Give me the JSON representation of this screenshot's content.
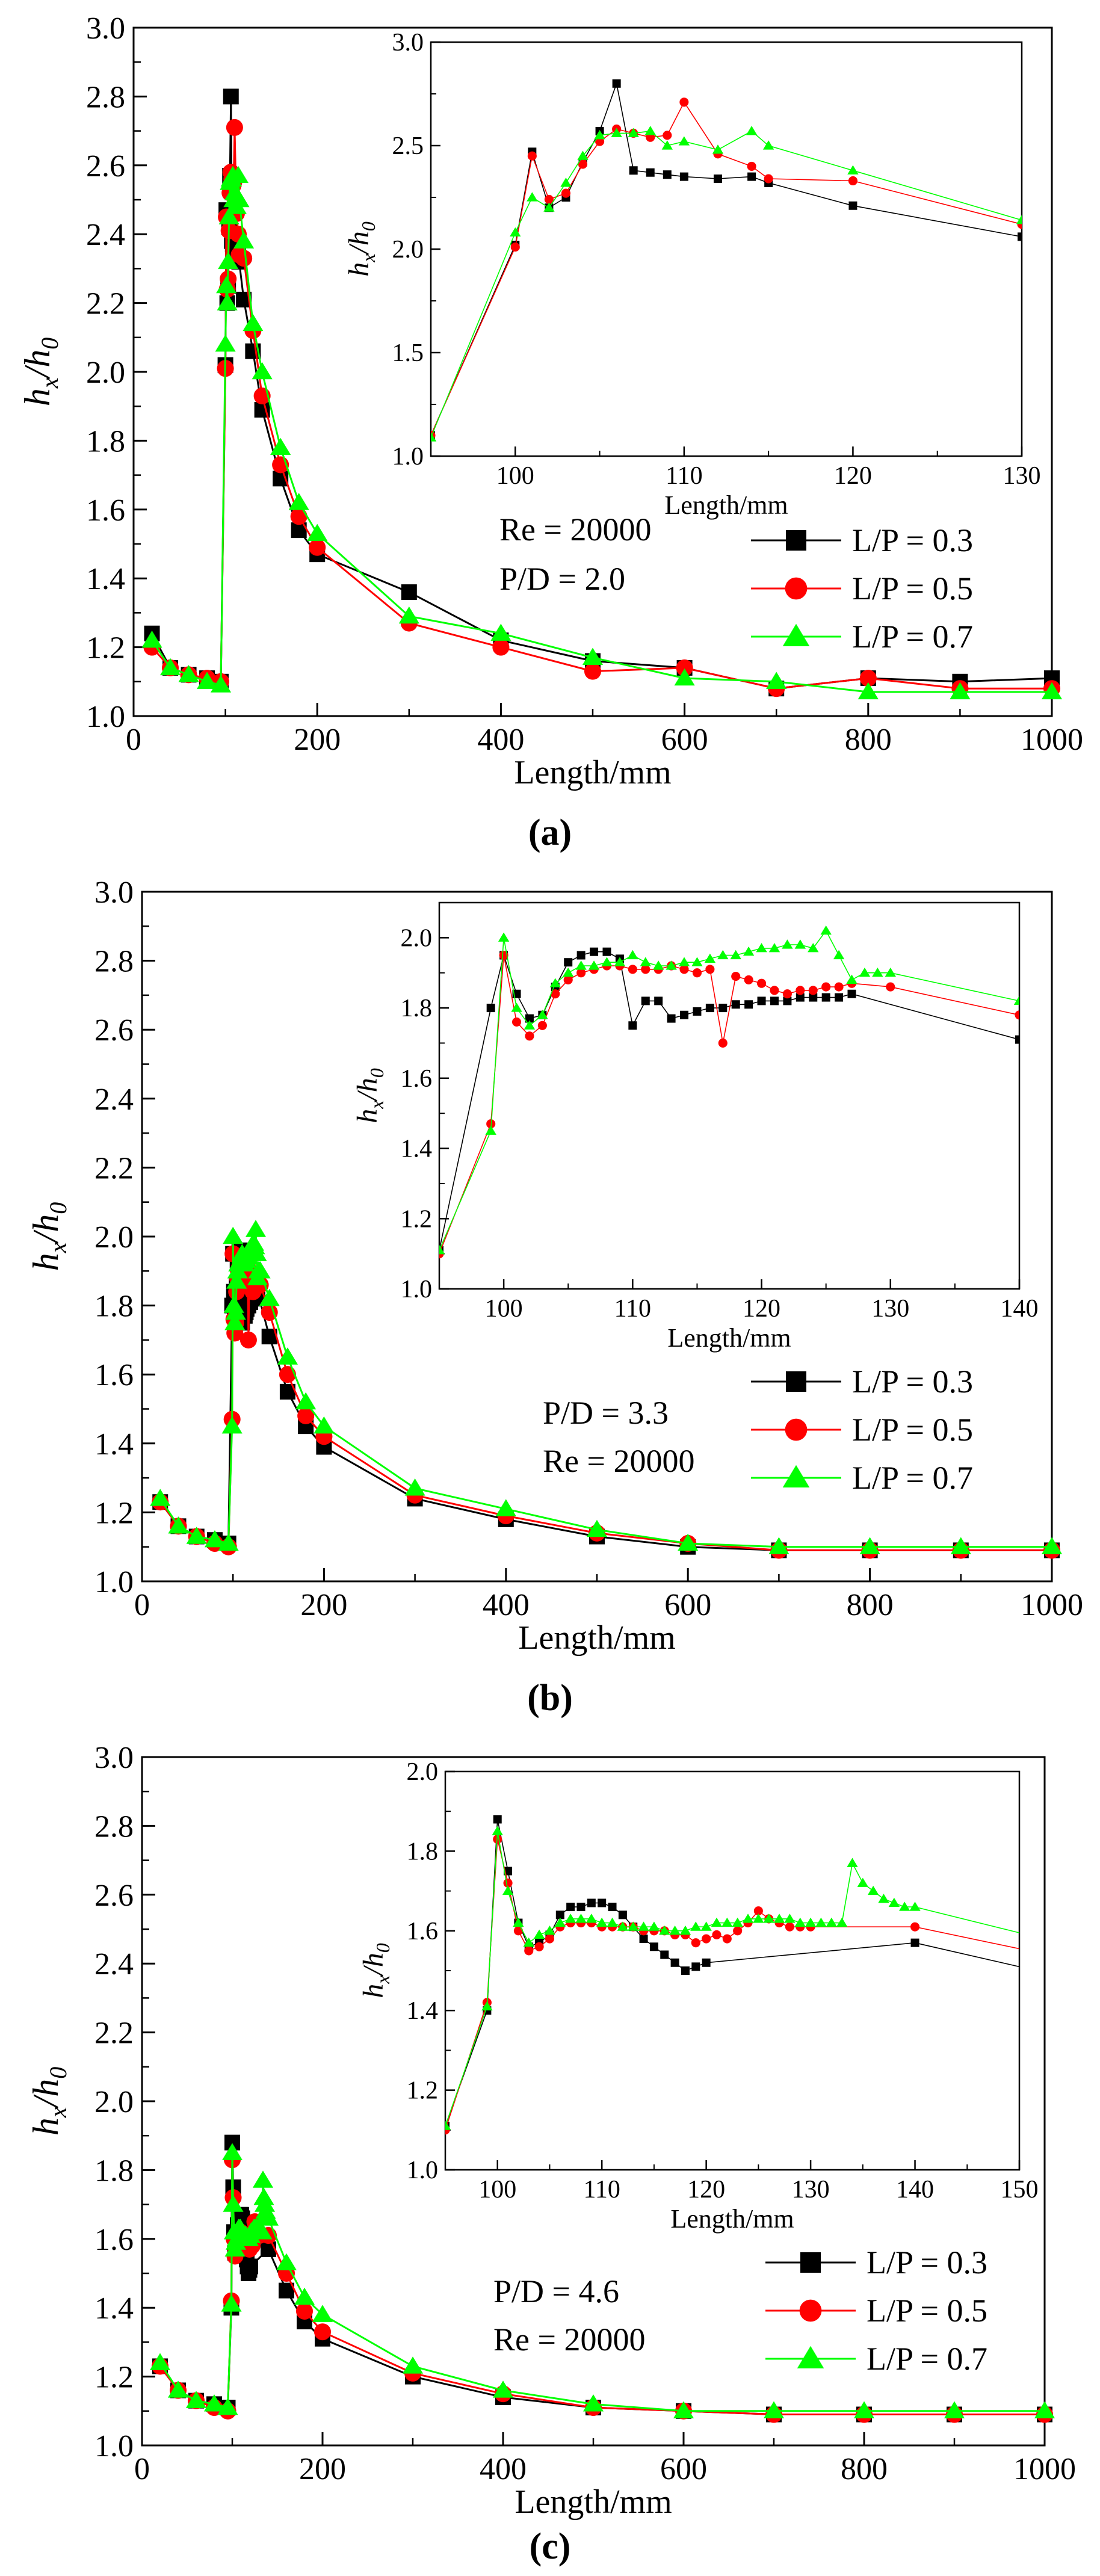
{
  "colors": {
    "series": [
      "#000000",
      "#ff0000",
      "#00ff00"
    ],
    "axis": "#000000",
    "background": "#ffffff"
  },
  "chart_data": [
    {
      "panel_label": "(a)",
      "type": "line",
      "xlabel": "Length/mm",
      "ylabel_main": "h",
      "ylabel_sub1": "x",
      "ylabel_sep": "/h",
      "ylabel_sub2": "0",
      "xlim": [
        0,
        1000
      ],
      "ylim": [
        1.0,
        3.0
      ],
      "xticks": [
        0,
        200,
        400,
        600,
        800,
        1000
      ],
      "yticks": [
        1.0,
        1.2,
        1.4,
        1.6,
        1.8,
        2.0,
        2.2,
        2.4,
        2.6,
        2.8,
        3.0
      ],
      "annotations": [
        "Re = 20000",
        "P/D = 2.0"
      ],
      "legend_position": "bottom-right",
      "series": [
        {
          "name": "L/P = 0.3",
          "marker": "square",
          "x": [
            20,
            40,
            60,
            80,
            95,
            100,
            101,
            102,
            103,
            104,
            105,
            106,
            107,
            108,
            109,
            110,
            112,
            114,
            115,
            120,
            130,
            140,
            160,
            180,
            200,
            300,
            400,
            500,
            600,
            700,
            800,
            900,
            1000
          ],
          "y": [
            1.24,
            1.14,
            1.12,
            1.11,
            1.1,
            2.02,
            2.47,
            2.2,
            2.25,
            2.42,
            2.57,
            2.8,
            2.38,
            2.37,
            2.36,
            2.35,
            2.34,
            2.35,
            2.32,
            2.21,
            2.06,
            1.89,
            1.69,
            1.54,
            1.47,
            1.36,
            1.22,
            1.16,
            1.14,
            1.08,
            1.11,
            1.1,
            1.11
          ]
        },
        {
          "name": "L/P = 0.5",
          "marker": "circle",
          "x": [
            20,
            40,
            60,
            80,
            95,
            100,
            101,
            102,
            103,
            104,
            105,
            106,
            107,
            108,
            109,
            110,
            112,
            114,
            115,
            120,
            130,
            140,
            160,
            180,
            200,
            300,
            400,
            500,
            600,
            700,
            800,
            900,
            1000
          ],
          "y": [
            1.2,
            1.14,
            1.12,
            1.11,
            1.1,
            2.01,
            2.45,
            2.24,
            2.27,
            2.41,
            2.52,
            2.58,
            2.56,
            2.54,
            2.55,
            2.71,
            2.46,
            2.4,
            2.34,
            2.33,
            2.12,
            1.93,
            1.73,
            1.58,
            1.49,
            1.27,
            1.2,
            1.13,
            1.14,
            1.08,
            1.11,
            1.08,
            1.08
          ]
        },
        {
          "name": "L/P = 0.7",
          "marker": "triangle",
          "x": [
            20,
            40,
            60,
            80,
            95,
            100,
            101,
            102,
            103,
            104,
            105,
            106,
            107,
            108,
            109,
            110,
            112,
            114,
            115,
            120,
            130,
            140,
            160,
            180,
            200,
            300,
            400,
            500,
            600,
            700,
            800,
            900,
            1000
          ],
          "y": [
            1.22,
            1.14,
            1.12,
            1.1,
            1.09,
            2.08,
            2.25,
            2.2,
            2.32,
            2.45,
            2.55,
            2.56,
            2.56,
            2.57,
            2.5,
            2.52,
            2.48,
            2.57,
            2.5,
            2.38,
            2.14,
            2.0,
            1.78,
            1.62,
            1.53,
            1.29,
            1.24,
            1.17,
            1.11,
            1.1,
            1.07,
            1.07,
            1.07
          ]
        }
      ],
      "inset": {
        "xlabel": "Length/mm",
        "xlim": [
          95,
          130
        ],
        "ylim": [
          1.0,
          3.0
        ],
        "xticks": [
          100,
          110,
          120,
          130
        ],
        "yticks": [
          1.0,
          1.5,
          2.0,
          2.5,
          3.0
        ],
        "ytick_labels": [
          "1.0",
          "1.5",
          "2.0",
          "2.5",
          "3.0"
        ]
      }
    },
    {
      "panel_label": "(b)",
      "type": "line",
      "xlabel": "Length/mm",
      "ylabel_main": "h",
      "ylabel_sub1": "x",
      "ylabel_sep": "/h",
      "ylabel_sub2": "0",
      "xlim": [
        0,
        1000
      ],
      "ylim": [
        1.0,
        3.0
      ],
      "xticks": [
        0,
        200,
        400,
        600,
        800,
        1000
      ],
      "yticks": [
        1.0,
        1.2,
        1.4,
        1.6,
        1.8,
        2.0,
        2.2,
        2.4,
        2.6,
        2.8,
        3.0
      ],
      "annotations": [
        "P/D = 3.3",
        "Re = 20000"
      ],
      "legend_position": "bottom-right",
      "series": [
        {
          "name": "L/P = 0.3",
          "marker": "square",
          "x": [
            20,
            40,
            60,
            80,
            95,
            99,
            100,
            101,
            102,
            103,
            104,
            105,
            106,
            107,
            108,
            109,
            110,
            111,
            112,
            113,
            114,
            115,
            116,
            117,
            118,
            119,
            120,
            121,
            122,
            123,
            124,
            125,
            126,
            127,
            140,
            160,
            180,
            200,
            300,
            400,
            500,
            600,
            700,
            800,
            900,
            1000
          ],
          "y": [
            1.23,
            1.16,
            1.13,
            1.12,
            1.11,
            1.8,
            1.95,
            1.84,
            1.77,
            1.78,
            1.86,
            1.93,
            1.95,
            1.96,
            1.96,
            1.94,
            1.75,
            1.82,
            1.82,
            1.77,
            1.78,
            1.79,
            1.8,
            1.8,
            1.81,
            1.81,
            1.82,
            1.82,
            1.82,
            1.83,
            1.83,
            1.83,
            1.83,
            1.84,
            1.71,
            1.55,
            1.45,
            1.39,
            1.24,
            1.18,
            1.13,
            1.1,
            1.09,
            1.09,
            1.09,
            1.09
          ]
        },
        {
          "name": "L/P = 0.5",
          "marker": "circle",
          "x": [
            20,
            40,
            60,
            80,
            95,
            99,
            100,
            101,
            102,
            103,
            104,
            105,
            106,
            107,
            108,
            109,
            110,
            111,
            112,
            113,
            114,
            115,
            116,
            117,
            118,
            119,
            120,
            121,
            122,
            123,
            124,
            125,
            126,
            127,
            130,
            140,
            160,
            180,
            200,
            300,
            400,
            500,
            600,
            700,
            800,
            900,
            1000
          ],
          "y": [
            1.23,
            1.16,
            1.13,
            1.11,
            1.1,
            1.47,
            1.95,
            1.76,
            1.72,
            1.75,
            1.84,
            1.88,
            1.9,
            1.91,
            1.92,
            1.92,
            1.91,
            1.91,
            1.91,
            1.92,
            1.91,
            1.9,
            1.91,
            1.7,
            1.89,
            1.88,
            1.87,
            1.85,
            1.84,
            1.85,
            1.85,
            1.86,
            1.86,
            1.87,
            1.86,
            1.78,
            1.6,
            1.48,
            1.42,
            1.25,
            1.19,
            1.14,
            1.11,
            1.09,
            1.09,
            1.09,
            1.09
          ]
        },
        {
          "name": "L/P = 0.7",
          "marker": "triangle",
          "x": [
            20,
            40,
            60,
            80,
            95,
            99,
            100,
            101,
            102,
            103,
            104,
            105,
            106,
            107,
            108,
            109,
            110,
            111,
            112,
            113,
            114,
            115,
            116,
            117,
            118,
            119,
            120,
            121,
            122,
            123,
            124,
            125,
            126,
            127,
            128,
            129,
            130,
            140,
            160,
            180,
            200,
            300,
            400,
            500,
            600,
            700,
            800,
            900,
            1000
          ],
          "y": [
            1.24,
            1.16,
            1.13,
            1.12,
            1.11,
            1.45,
            2.0,
            1.8,
            1.75,
            1.78,
            1.87,
            1.9,
            1.92,
            1.92,
            1.93,
            1.93,
            1.95,
            1.93,
            1.92,
            1.92,
            1.93,
            1.93,
            1.94,
            1.95,
            1.95,
            1.96,
            1.97,
            1.97,
            1.98,
            1.98,
            1.97,
            2.02,
            1.95,
            1.88,
            1.9,
            1.9,
            1.9,
            1.82,
            1.65,
            1.52,
            1.45,
            1.27,
            1.21,
            1.15,
            1.11,
            1.1,
            1.1,
            1.1,
            1.1
          ]
        }
      ],
      "inset": {
        "xlabel": "Length/mm",
        "xlim": [
          95,
          140
        ],
        "ylim": [
          1.0,
          2.1
        ],
        "xticks": [
          100,
          110,
          120,
          130,
          140
        ],
        "yticks": [
          1.0,
          1.2,
          1.4,
          1.6,
          1.8,
          2.0
        ],
        "ytick_labels": [
          "1.0",
          "1.2",
          "1.4",
          "1.6",
          "1.8",
          "2.0"
        ]
      }
    },
    {
      "panel_label": "(c)",
      "type": "line",
      "xlabel": "Length/mm",
      "ylabel_main": "h",
      "ylabel_sub1": "x",
      "ylabel_sep": "/h",
      "ylabel_sub2": "0",
      "xlim": [
        0,
        1000
      ],
      "ylim": [
        1.0,
        3.0
      ],
      "xticks": [
        0,
        200,
        400,
        600,
        800,
        1000
      ],
      "yticks": [
        1.0,
        1.2,
        1.4,
        1.6,
        1.8,
        2.0,
        2.2,
        2.4,
        2.6,
        2.8,
        3.0
      ],
      "annotations": [
        "P/D = 4.6",
        "Re = 20000"
      ],
      "legend_position": "bottom-right",
      "series": [
        {
          "name": "L/P = 0.3",
          "marker": "square",
          "x": [
            20,
            40,
            60,
            80,
            95,
            99,
            100,
            101,
            102,
            103,
            104,
            105,
            106,
            107,
            108,
            109,
            110,
            111,
            112,
            113,
            114,
            115,
            116,
            117,
            118,
            119,
            120,
            140,
            160,
            180,
            200,
            300,
            400,
            500,
            600,
            700,
            800,
            900,
            1000
          ],
          "y": [
            1.23,
            1.16,
            1.13,
            1.12,
            1.11,
            1.4,
            1.88,
            1.75,
            1.62,
            1.56,
            1.57,
            1.59,
            1.64,
            1.66,
            1.66,
            1.67,
            1.67,
            1.66,
            1.64,
            1.61,
            1.58,
            1.56,
            1.54,
            1.52,
            1.5,
            1.51,
            1.52,
            1.57,
            1.45,
            1.36,
            1.31,
            1.2,
            1.14,
            1.11,
            1.1,
            1.09,
            1.09,
            1.09,
            1.09
          ]
        },
        {
          "name": "L/P = 0.5",
          "marker": "circle",
          "x": [
            20,
            40,
            60,
            80,
            95,
            99,
            100,
            101,
            102,
            103,
            104,
            105,
            106,
            107,
            108,
            109,
            110,
            111,
            112,
            113,
            114,
            115,
            116,
            117,
            118,
            119,
            120,
            121,
            122,
            123,
            124,
            125,
            126,
            127,
            128,
            129,
            130,
            140,
            160,
            180,
            200,
            300,
            400,
            500,
            600,
            700,
            800,
            900,
            1000
          ],
          "y": [
            1.23,
            1.16,
            1.13,
            1.11,
            1.1,
            1.42,
            1.83,
            1.72,
            1.6,
            1.55,
            1.56,
            1.58,
            1.61,
            1.62,
            1.62,
            1.62,
            1.61,
            1.61,
            1.61,
            1.61,
            1.6,
            1.6,
            1.6,
            1.59,
            1.59,
            1.57,
            1.58,
            1.59,
            1.58,
            1.6,
            1.62,
            1.65,
            1.63,
            1.62,
            1.61,
            1.61,
            1.61,
            1.61,
            1.5,
            1.39,
            1.33,
            1.21,
            1.15,
            1.11,
            1.1,
            1.09,
            1.09,
            1.09,
            1.09
          ]
        },
        {
          "name": "L/P = 0.7",
          "marker": "triangle",
          "x": [
            20,
            40,
            60,
            80,
            95,
            99,
            100,
            101,
            102,
            103,
            104,
            105,
            106,
            107,
            108,
            109,
            110,
            111,
            112,
            113,
            114,
            115,
            116,
            117,
            118,
            119,
            120,
            121,
            122,
            123,
            124,
            125,
            126,
            127,
            128,
            129,
            130,
            131,
            132,
            133,
            134,
            135,
            136,
            137,
            138,
            139,
            140,
            160,
            180,
            200,
            300,
            400,
            500,
            600,
            700,
            800,
            900,
            1000
          ],
          "y": [
            1.24,
            1.16,
            1.13,
            1.12,
            1.11,
            1.41,
            1.85,
            1.7,
            1.62,
            1.57,
            1.59,
            1.6,
            1.62,
            1.63,
            1.63,
            1.63,
            1.62,
            1.62,
            1.61,
            1.61,
            1.61,
            1.61,
            1.6,
            1.6,
            1.6,
            1.61,
            1.61,
            1.62,
            1.62,
            1.62,
            1.63,
            1.63,
            1.63,
            1.63,
            1.63,
            1.62,
            1.62,
            1.62,
            1.62,
            1.62,
            1.77,
            1.72,
            1.7,
            1.68,
            1.67,
            1.66,
            1.66,
            1.53,
            1.43,
            1.38,
            1.23,
            1.16,
            1.12,
            1.1,
            1.1,
            1.1,
            1.1,
            1.1
          ]
        }
      ],
      "inset": {
        "xlabel": "Length/mm",
        "xlim": [
          95,
          150
        ],
        "ylim": [
          1.0,
          2.0
        ],
        "xticks": [
          100,
          110,
          120,
          130,
          140,
          150
        ],
        "yticks": [
          1.0,
          1.2,
          1.4,
          1.6,
          1.8,
          2.0
        ],
        "ytick_labels": [
          "1.0",
          "1.2",
          "1.4",
          "1.6",
          "1.8",
          "2.0"
        ]
      }
    }
  ]
}
